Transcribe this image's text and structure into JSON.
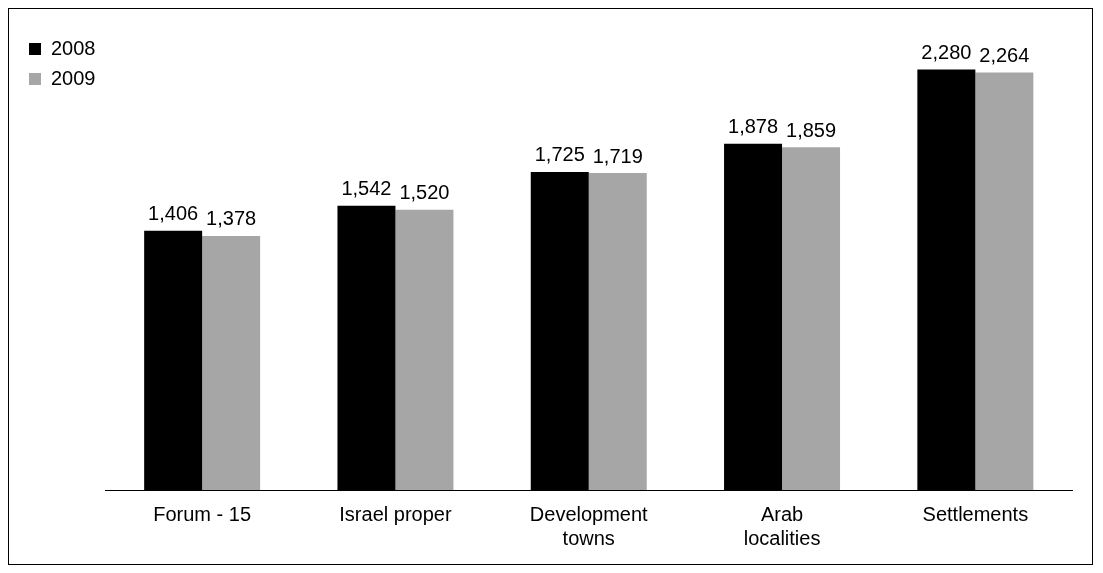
{
  "chart_data": {
    "type": "bar",
    "categories": [
      "Forum - 15",
      "Israel proper",
      "Development towns",
      "Arab localities",
      "Settlements"
    ],
    "series": [
      {
        "name": "2008",
        "color": "#000000",
        "values": [
          1406,
          1542,
          1725,
          1878,
          2280
        ],
        "value_labels": [
          "1,406",
          "1,542",
          "1,725",
          "1,878",
          "2,280"
        ]
      },
      {
        "name": "2009",
        "color": "#a6a6a6",
        "values": [
          1378,
          1520,
          1719,
          1859,
          2264
        ],
        "value_labels": [
          "1,378",
          "1,520",
          "1,719",
          "1,859",
          "2,264"
        ]
      }
    ],
    "legend": "top left",
    "grid": false
  }
}
